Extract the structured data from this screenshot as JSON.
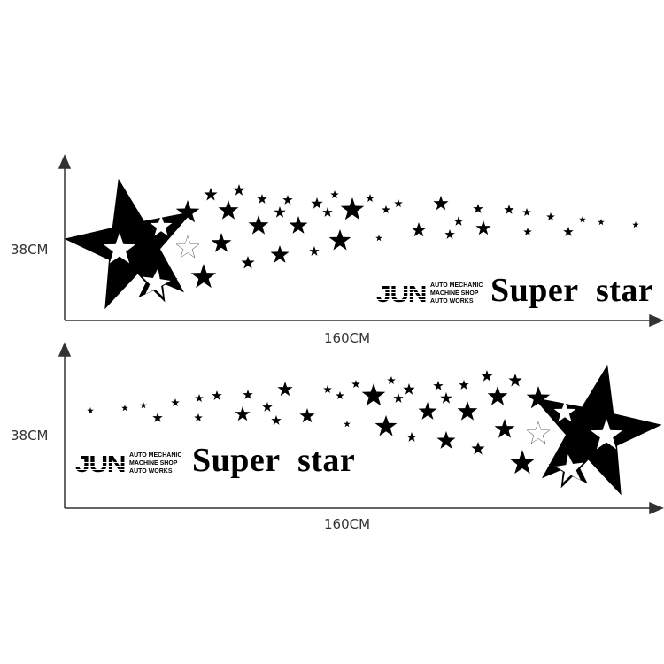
{
  "panels": [
    {
      "height_label": "38CM",
      "width_label": "160CM",
      "logo": {
        "brand": "JUN",
        "lines": [
          "AUTO MECHANIC",
          "MACHINE SHOP",
          "AUTO WORKS"
        ]
      },
      "title": "Super  star",
      "orientation": "star-left"
    },
    {
      "height_label": "38CM",
      "width_label": "160CM",
      "logo": {
        "brand": "JUN",
        "lines": [
          "AUTO MECHANIC",
          "MACHINE SHOP",
          "AUTO WORKS"
        ]
      },
      "title": "Super  star",
      "orientation": "star-right"
    }
  ],
  "colors": {
    "ink": "#000000",
    "axis": "#333333",
    "background": "#ffffff"
  }
}
